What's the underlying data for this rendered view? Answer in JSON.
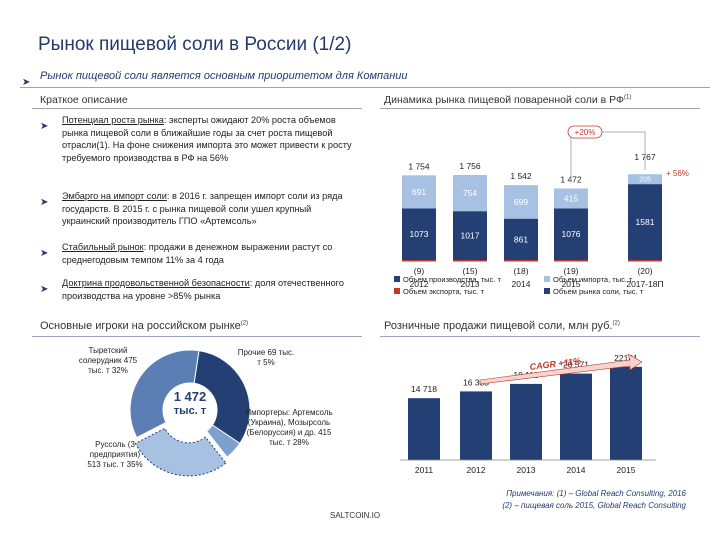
{
  "title": "Рынок пищевой соли в России (1/2)",
  "subtitle": "Рынок пищевой соли является основным приоритетом для Компании",
  "left_section": "Краткое описание",
  "right_section": "Динамика рынка пищевой поваренной соли в РФ",
  "right_section_sup": "(1)",
  "bullets": [
    {
      "head": "Потенциал роста рынка",
      "text": ": эксперты ожидают 20% роста объемов рынка пищевой соли в ближайшие годы за счет роста пищевой отрасли(1). На фоне снижения импорта это может привести к росту требуемого производства в РФ на 56%"
    },
    {
      "head": "Эмбарго на импорт соли",
      "text": ": в 2016 г. запрещен импорт соли из ряда государств. В 2015 г. с рынка пищевой соли ушел крупный украинский производитель ГПО «Артемсоль»"
    },
    {
      "head": "Стабильный рынок",
      "text": ": продажи в денежном выражении растут со среднегодовым темпом 11% за 4 года"
    },
    {
      "head": "Доктрина продовольственной безопасности",
      "text": ": доля отечественного производства на уровне >85% рынка"
    }
  ],
  "players_title": "Основные игроки на российском рынке",
  "players_sup": "(2)",
  "retail_title": "Розничные продажи пищевой соли, млн руб.",
  "retail_sup": "(2)",
  "pie": {
    "center": "1 472",
    "center_unit": "тыс. т",
    "labels": [
      "Тыретский солерудник 475 тыс. т 32%",
      "Прочие 69 тыс. т 5%",
      "Импортеры: Артемсоль (Украина), Мозырсоль (Белоруссия) и др. 415 тыс. т 28%",
      "Руссоль (3 предприятия) 513 тыс. т 35%"
    ]
  },
  "chart1": {
    "categories": [
      "2012",
      "2013",
      "2014",
      "2015",
      "2017-18П"
    ],
    "totals": [
      "1 754",
      "1 756",
      "1 542",
      "1 472",
      "1 767"
    ],
    "production": [
      "1073",
      "1017",
      "861",
      "1076",
      ""
    ],
    "imports": [
      "691",
      "754",
      "699",
      "415",
      ""
    ],
    "exports": [
      "(9)",
      "(15)",
      "(18)",
      "(19)",
      "(20)"
    ],
    "forecast_production": "1581",
    "forecast_top": "205",
    "growth": "+20%",
    "growth_side": "+ 56%",
    "legend": [
      "Объем производства, тыс. т",
      "Объем импорта, тыс. т",
      "Объем экспорта, тыс. т",
      "Объем рынка соли, тыс. т"
    ],
    "colors": {
      "production": "#243f73",
      "imports": "#a7c1e2",
      "exports": "#c0392b",
      "market": "#243f73"
    }
  },
  "chart2": {
    "categories": [
      "2011",
      "2012",
      "2013",
      "2014",
      "2015"
    ],
    "values": [
      14718,
      16333,
      18118,
      20571,
      22181
    ],
    "labels": [
      "14 718",
      "16 333",
      "18 118",
      "20 571",
      "22181"
    ],
    "cagr": "CAGR +11%"
  },
  "notes": [
    "Примечания: (1) – Global Reach Consulting, 2016",
    "(2) – пищевая соль 2015, Global Reach Consulting"
  ],
  "footer": "SALTCOIN.IO"
}
